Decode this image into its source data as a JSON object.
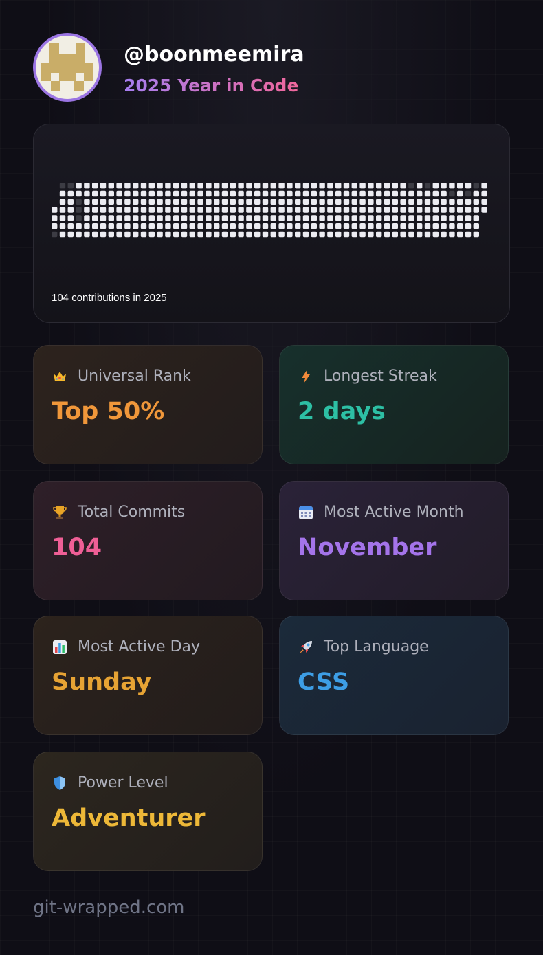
{
  "profile": {
    "username": "@boonmeemira",
    "subtitle": "2025 Year in Code"
  },
  "contributions": {
    "summary": "104 contributions in 2025",
    "grid_columns": 54,
    "grid_rows": 7,
    "dim_cells": [
      [
        0,
        6
      ],
      [
        1,
        0
      ],
      [
        2,
        0
      ],
      [
        3,
        2
      ],
      [
        3,
        3
      ],
      [
        3,
        4
      ],
      [
        44,
        0
      ],
      [
        46,
        0
      ],
      [
        49,
        1
      ],
      [
        51,
        1
      ],
      [
        52,
        0
      ]
    ],
    "cell_color": "#ececf2",
    "dim_color": "#3c3c44"
  },
  "stats": [
    {
      "id": "universal-rank",
      "icon": "crown-icon",
      "label": "Universal Rank",
      "value": "Top 50%",
      "color": "#f0973a"
    },
    {
      "id": "longest-streak",
      "icon": "lightning-icon",
      "label": "Longest Streak",
      "value": "2 days",
      "color": "#2dbfa4"
    },
    {
      "id": "total-commits",
      "icon": "trophy-icon",
      "label": "Total Commits",
      "value": "104",
      "color": "#ef5f96"
    },
    {
      "id": "most-active-month",
      "icon": "calendar-icon",
      "label": "Most Active Month",
      "value": "November",
      "color": "#a474ea"
    },
    {
      "id": "most-active-day",
      "icon": "bar-chart-icon",
      "label": "Most Active Day",
      "value": "Sunday",
      "color": "#e6a334"
    },
    {
      "id": "top-language",
      "icon": "rocket-icon",
      "label": "Top Language",
      "value": "CSS",
      "color": "#3d9ee6"
    },
    {
      "id": "power-level",
      "icon": "shield-icon",
      "label": "Power Level",
      "value": "Adventurer",
      "color": "#edb838"
    }
  ],
  "footer": "git-wrapped.com"
}
